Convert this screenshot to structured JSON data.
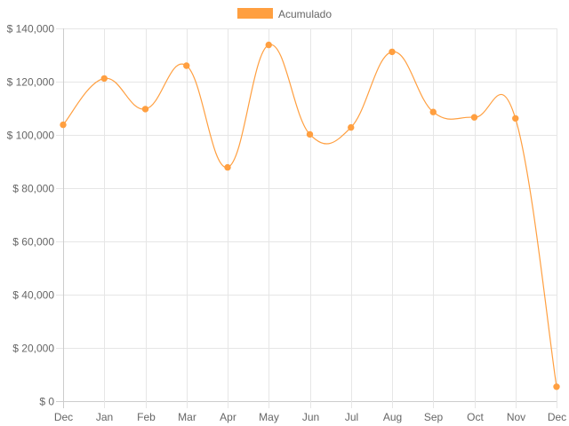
{
  "chart_data": {
    "type": "line",
    "categories": [
      "Dec",
      "Jan",
      "Feb",
      "Mar",
      "Apr",
      "May",
      "Jun",
      "Jul",
      "Aug",
      "Sep",
      "Oct",
      "Nov",
      "Dec"
    ],
    "series": [
      {
        "name": "Acumulado",
        "color": "#ff9f40",
        "values": [
          103800,
          121200,
          109700,
          126000,
          87800,
          133800,
          100200,
          102800,
          131200,
          108600,
          106600,
          106200,
          5400
        ]
      }
    ],
    "ylim": [
      0,
      140000
    ],
    "yticks": [
      0,
      20000,
      40000,
      60000,
      80000,
      100000,
      120000,
      140000
    ],
    "ytick_labels": [
      "$ 0",
      "$ 20,000",
      "$ 40,000",
      "$ 60,000",
      "$ 80,000",
      "$ 100,000",
      "$ 120,000",
      "$ 140,000"
    ],
    "grid": true,
    "legend_position": "top-center"
  }
}
